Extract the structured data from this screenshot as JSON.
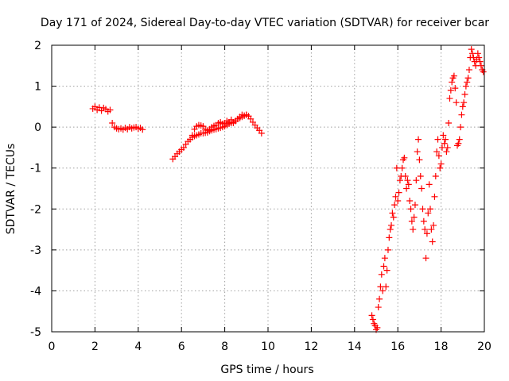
{
  "colors": {
    "series": "#ff0000",
    "grid": "#a0a0a0",
    "axis": "#000000"
  },
  "chart_data": {
    "type": "scatter",
    "title": "Day 171 of 2024, Sidereal Day-to-day VTEC variation (SDTVAR) for receiver bcar",
    "xlabel": "GPS time / hours",
    "ylabel": "SDTVAR / TECUs",
    "xlim": [
      0,
      20
    ],
    "ylim": [
      -5,
      2
    ],
    "xticks": [
      0,
      2,
      4,
      6,
      8,
      10,
      12,
      14,
      16,
      18,
      20
    ],
    "yticks": [
      -5,
      -4,
      -3,
      -2,
      -1,
      0,
      1,
      2
    ],
    "grid": true,
    "marker": "+",
    "series": [
      {
        "name": "SDTVAR",
        "x": [
          1.9,
          2.0,
          2.1,
          2.2,
          2.3,
          2.4,
          2.5,
          2.6,
          2.7,
          2.8,
          2.9,
          3.0,
          3.1,
          3.2,
          3.3,
          3.4,
          3.5,
          3.6,
          3.7,
          3.8,
          3.9,
          4.0,
          4.1,
          4.2,
          5.6,
          5.7,
          5.8,
          5.9,
          6.0,
          6.1,
          6.2,
          6.3,
          6.4,
          6.5,
          6.6,
          6.7,
          6.8,
          6.9,
          7.0,
          7.1,
          7.2,
          7.3,
          7.4,
          7.5,
          7.6,
          7.7,
          7.8,
          7.9,
          8.0,
          8.1,
          8.2,
          8.3,
          8.4,
          8.5,
          8.6,
          8.7,
          8.8,
          8.9,
          9.0,
          9.1,
          9.2,
          9.3,
          9.4,
          9.5,
          9.6,
          9.7,
          6.5,
          6.6,
          6.7,
          6.8,
          6.9,
          7.0,
          7.1,
          7.2,
          7.3,
          7.4,
          7.5,
          7.6,
          7.7,
          7.8,
          7.9,
          8.0,
          8.1,
          8.2,
          8.3,
          8.4,
          8.5,
          8.6,
          8.7,
          8.8,
          8.9,
          9.0,
          14.8,
          14.85,
          14.9,
          14.95,
          15.0,
          15.05,
          15.1,
          15.15,
          15.2,
          15.25,
          15.3,
          15.35,
          15.4,
          15.45,
          15.5,
          15.55,
          15.6,
          15.65,
          15.7,
          15.75,
          15.8,
          15.85,
          15.9,
          15.95,
          16.0,
          16.05,
          16.1,
          16.15,
          16.2,
          16.25,
          16.3,
          16.35,
          16.4,
          16.45,
          16.5,
          16.55,
          16.6,
          16.65,
          16.7,
          16.75,
          16.8,
          16.85,
          16.9,
          16.95,
          17.0,
          17.05,
          17.1,
          17.15,
          17.2,
          17.25,
          17.3,
          17.35,
          17.4,
          17.45,
          17.5,
          17.55,
          17.6,
          17.65,
          17.7,
          17.75,
          17.8,
          17.85,
          17.9,
          17.95,
          18.0,
          18.05,
          18.1,
          18.15,
          18.2,
          18.25,
          18.3,
          18.35,
          18.4,
          18.45,
          18.5,
          18.55,
          18.6,
          18.65,
          18.7,
          18.75,
          18.8,
          18.85,
          18.9,
          18.95,
          19.0,
          19.05,
          19.1,
          19.15,
          19.2,
          19.25,
          19.3,
          19.35,
          19.4,
          19.45,
          19.5,
          19.55,
          19.6,
          19.65,
          19.7,
          19.75,
          19.8,
          19.85,
          19.9,
          19.95
        ],
        "y": [
          0.45,
          0.5,
          0.42,
          0.48,
          0.4,
          0.47,
          0.44,
          0.38,
          0.42,
          0.1,
          0.0,
          -0.03,
          -0.05,
          -0.03,
          -0.06,
          -0.02,
          -0.05,
          0.0,
          -0.03,
          -0.01,
          0.0,
          -0.04,
          -0.02,
          -0.06,
          -0.78,
          -0.72,
          -0.65,
          -0.6,
          -0.55,
          -0.5,
          -0.42,
          -0.35,
          -0.3,
          -0.25,
          -0.22,
          -0.2,
          -0.18,
          -0.15,
          -0.15,
          -0.14,
          -0.13,
          -0.1,
          -0.08,
          -0.06,
          -0.05,
          -0.03,
          -0.02,
          0.0,
          0.02,
          0.05,
          0.08,
          0.1,
          0.12,
          0.15,
          0.2,
          0.22,
          0.25,
          0.28,
          0.3,
          0.27,
          0.2,
          0.12,
          0.05,
          -0.02,
          -0.08,
          -0.15,
          -0.2,
          -0.05,
          0.02,
          0.05,
          0.04,
          0.02,
          -0.05,
          -0.08,
          -0.05,
          0.0,
          0.03,
          0.05,
          0.1,
          0.12,
          0.08,
          0.1,
          0.15,
          0.12,
          0.18,
          0.1,
          0.15,
          0.2,
          0.25,
          0.3,
          0.28,
          0.3,
          -4.6,
          -4.7,
          -4.8,
          -4.85,
          -4.95,
          -4.9,
          -4.4,
          -4.2,
          -3.9,
          -3.6,
          -4.0,
          -3.4,
          -3.2,
          -3.9,
          -3.5,
          -3.0,
          -2.7,
          -2.5,
          -2.4,
          -2.1,
          -2.2,
          -1.9,
          -1.7,
          -1.0,
          -1.8,
          -1.6,
          -1.3,
          -1.2,
          -1.0,
          -0.8,
          -0.75,
          -1.2,
          -1.5,
          -1.3,
          -1.4,
          -1.8,
          -2.0,
          -2.3,
          -2.5,
          -2.2,
          -1.9,
          -1.3,
          -0.6,
          -0.3,
          -0.8,
          -1.2,
          -1.5,
          -2.0,
          -2.3,
          -2.5,
          -3.2,
          -2.6,
          -2.1,
          -1.4,
          -2.0,
          -2.5,
          -2.8,
          -2.4,
          -1.7,
          -1.2,
          -0.6,
          -0.3,
          -0.7,
          -1.0,
          -0.9,
          -0.5,
          -0.2,
          -0.4,
          -0.3,
          -0.6,
          -0.5,
          0.1,
          0.7,
          0.9,
          1.1,
          1.2,
          1.25,
          0.95,
          0.6,
          -0.45,
          -0.4,
          -0.3,
          0.0,
          0.3,
          0.5,
          0.6,
          0.8,
          1.0,
          1.1,
          1.2,
          1.4,
          1.7,
          1.9,
          1.8,
          1.7,
          1.6,
          1.5,
          1.65,
          1.8,
          1.7,
          1.6,
          1.5,
          1.4,
          1.35
        ]
      }
    ]
  }
}
